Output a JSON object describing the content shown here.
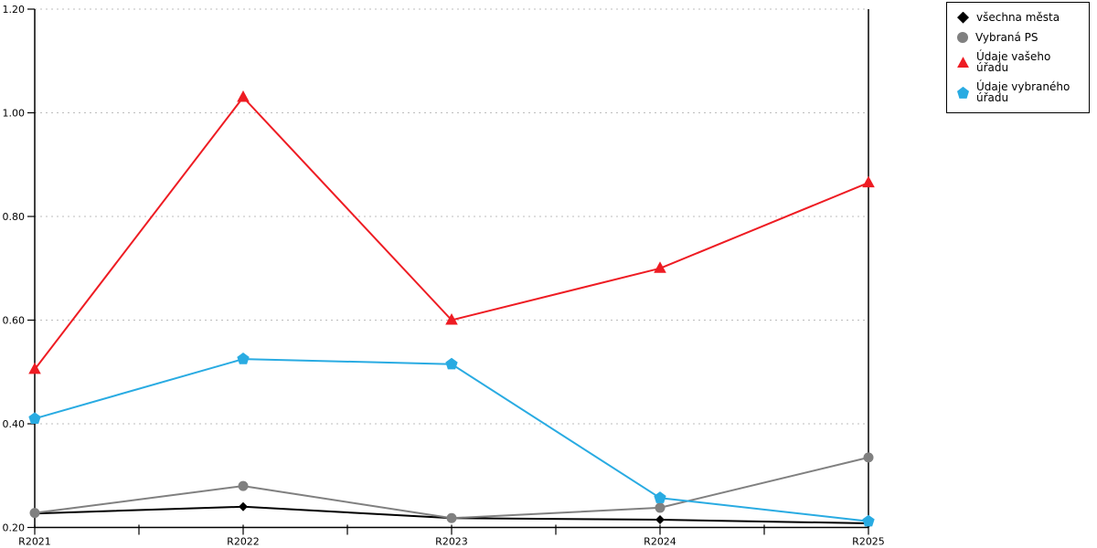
{
  "chart_data": {
    "type": "line",
    "title": "",
    "xlabel": "",
    "ylabel": "",
    "categories": [
      "R2021",
      "R2022",
      "R2023",
      "R2024",
      "R2025"
    ],
    "ylim": [
      0.2,
      1.2
    ],
    "yticks": [
      "0.20",
      "0.40",
      "0.60",
      "0.80",
      "1.00",
      "1.20"
    ],
    "grid": "horizontal dotted",
    "grid_color": "#bdbdbd",
    "axis_color": "#000000",
    "legend_position": "outside top-right",
    "series": [
      {
        "name": "všechna města",
        "color": "#000000",
        "marker": "diamond",
        "values": [
          0.227,
          0.24,
          0.218,
          0.215,
          0.208
        ]
      },
      {
        "name": "Vybraná PS",
        "color": "#808080",
        "marker": "circle",
        "values": [
          0.228,
          0.28,
          0.218,
          0.238,
          0.335
        ]
      },
      {
        "name": "Údaje vašeho úřadu",
        "color": "#ee1c23",
        "marker": "triangle",
        "values": [
          0.505,
          1.03,
          0.6,
          0.7,
          0.865
        ]
      },
      {
        "name": "Údaje vybraného úřadu",
        "color": "#29abe2",
        "marker": "pentagon",
        "values": [
          0.41,
          0.525,
          0.515,
          0.257,
          0.212
        ]
      }
    ]
  },
  "legend": {
    "border_color": "#000000",
    "background": "#ffffff"
  }
}
